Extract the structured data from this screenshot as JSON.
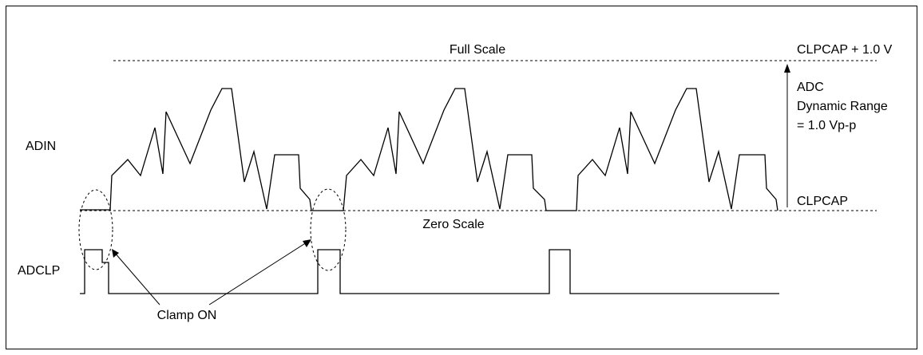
{
  "labels": {
    "full_scale": "Full Scale",
    "full_scale_level": "CLPCAP + 1.0 V",
    "dynamic_range_line1": "ADC",
    "dynamic_range_line2": "Dynamic Range",
    "dynamic_range_line3": "= 1.0 Vp-p",
    "adin": "ADIN",
    "clpcap": "CLPCAP",
    "zero_scale": "Zero Scale",
    "adclp": "ADCLP",
    "clamp_on": "Clamp ON"
  },
  "colors": {
    "stroke": "#000000",
    "background": "#ffffff"
  }
}
